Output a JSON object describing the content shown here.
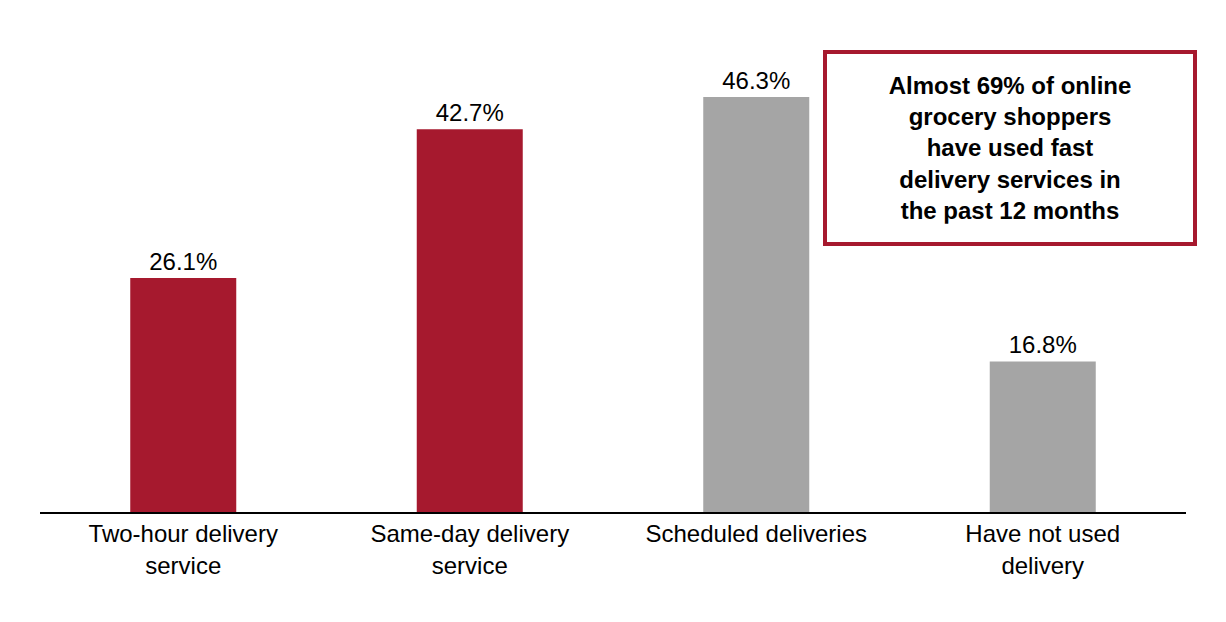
{
  "chart_data": {
    "type": "bar",
    "categories": [
      "Two-hour delivery service",
      "Same-day delivery service",
      "Scheduled deliveries",
      "Have not used delivery"
    ],
    "values": [
      26.1,
      42.7,
      46.3,
      16.8
    ],
    "value_labels": [
      "26.1%",
      "42.7%",
      "46.3%",
      "16.8%"
    ],
    "colors": [
      "#A6192E",
      "#A6192E",
      "#A5A5A5",
      "#A5A5A5"
    ],
    "data_labels": true,
    "tick_labels": "x",
    "grid": false,
    "ylim": [
      0,
      56
    ],
    "annotations": [
      {
        "text": [
          "Almost 69% of online",
          "grocery shoppers",
          "have used fast",
          "delivery services in",
          "the past 12 months"
        ],
        "color": "#A6192E"
      }
    ]
  }
}
